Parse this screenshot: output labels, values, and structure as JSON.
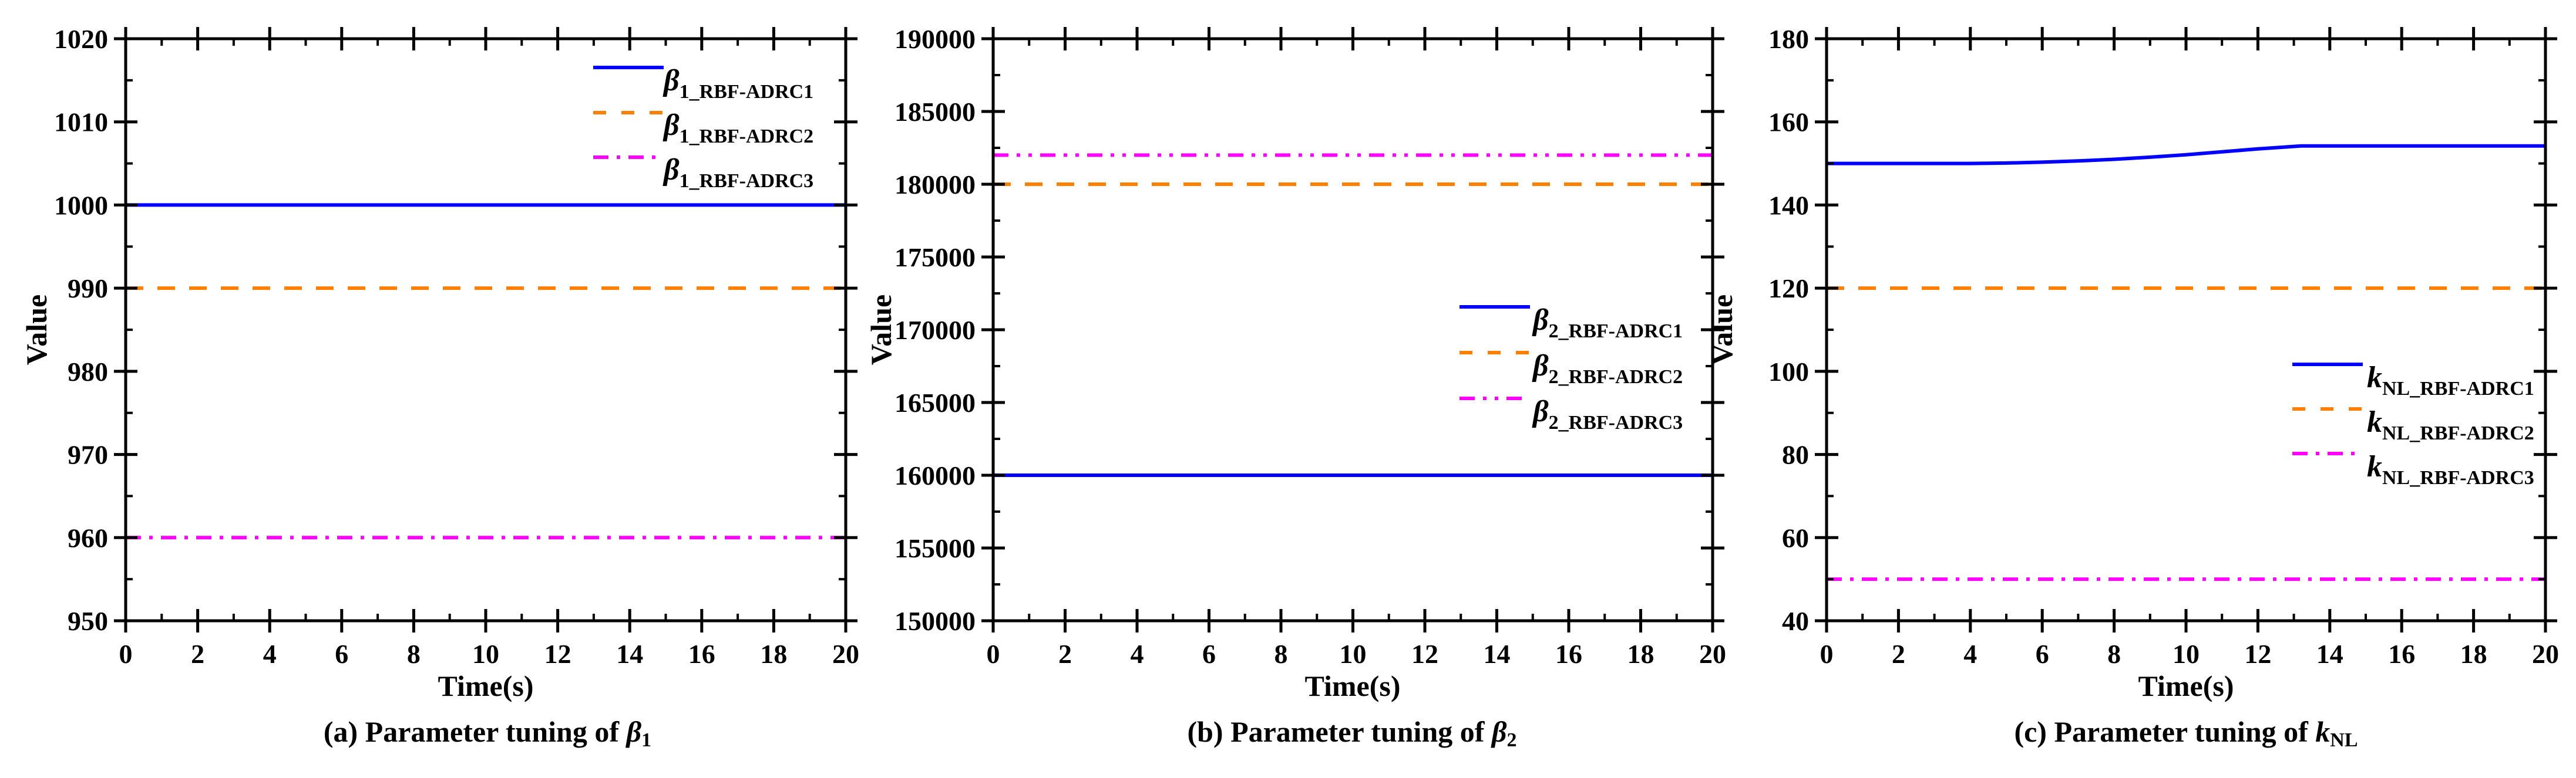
{
  "figure": {
    "panels": [
      {
        "id": "a",
        "caption_prefix": "(a) Parameter tuning of ",
        "caption_symbol": "β",
        "caption_sub": "1",
        "xlabel": "Time(s)",
        "ylabel": "Value",
        "legend": [
          {
            "symbol": "β",
            "sub": "1_RBF-ADRC1"
          },
          {
            "symbol": "β",
            "sub": "1_RBF-ADRC2"
          },
          {
            "symbol": "β",
            "sub": "1_RBF-ADRC3"
          }
        ]
      },
      {
        "id": "b",
        "caption_prefix": "(b)  Parameter tuning of ",
        "caption_symbol": "β",
        "caption_sub": "2",
        "xlabel": "Time(s)",
        "ylabel": "Value",
        "legend": [
          {
            "symbol": "β",
            "sub": "2_RBF-ADRC1"
          },
          {
            "symbol": "β",
            "sub": "2_RBF-ADRC2"
          },
          {
            "symbol": "β",
            "sub": "2_RBF-ADRC3"
          }
        ]
      },
      {
        "id": "c",
        "caption_prefix": "(c) Parameter tuning of ",
        "caption_symbol": "k",
        "caption_sub": "NL",
        "xlabel": "Time(s)",
        "ylabel": "Value",
        "legend": [
          {
            "symbol": "k",
            "sub": "NL_RBF-ADRC1"
          },
          {
            "symbol": "k",
            "sub": "NL_RBF-ADRC2"
          },
          {
            "symbol": "k",
            "sub": "NL_RBF-ADRC3"
          }
        ]
      }
    ],
    "colors": {
      "series1": "#0000ff",
      "series2": "#ff8000",
      "series3": "#ff00ff",
      "axis": "#000000"
    }
  },
  "chart_data": [
    {
      "type": "line",
      "title": "(a) Parameter tuning of β1",
      "xlabel": "Time(s)",
      "ylabel": "Value",
      "xlim": [
        0,
        20
      ],
      "ylim": [
        950,
        1020
      ],
      "xticks": [
        0,
        2,
        4,
        6,
        8,
        10,
        12,
        14,
        16,
        18,
        20
      ],
      "yticks": [
        950,
        960,
        970,
        980,
        990,
        1000,
        1010,
        1020
      ],
      "grid": false,
      "legend_position": "upper right",
      "x": [
        0,
        20
      ],
      "series": [
        {
          "name": "β1_RBF-ADRC1",
          "style": "solid",
          "color": "#0000ff",
          "values": [
            1000,
            1000
          ]
        },
        {
          "name": "β1_RBF-ADRC2",
          "style": "dash",
          "color": "#ff8000",
          "values": [
            990,
            990
          ]
        },
        {
          "name": "β1_RBF-ADRC3",
          "style": "dash-dot",
          "color": "#ff00ff",
          "values": [
            960,
            960
          ]
        }
      ]
    },
    {
      "type": "line",
      "title": "(b) Parameter tuning of β2",
      "xlabel": "Time(s)",
      "ylabel": "Value",
      "xlim": [
        0,
        20
      ],
      "ylim": [
        150000,
        190000
      ],
      "xticks": [
        0,
        2,
        4,
        6,
        8,
        10,
        12,
        14,
        16,
        18,
        20
      ],
      "yticks": [
        150000,
        155000,
        160000,
        165000,
        170000,
        175000,
        180000,
        185000,
        190000
      ],
      "grid": false,
      "legend_position": "center right",
      "x": [
        0,
        20
      ],
      "series": [
        {
          "name": "β2_RBF-ADRC1",
          "style": "solid",
          "color": "#0000ff",
          "values": [
            160000,
            160000
          ]
        },
        {
          "name": "β2_RBF-ADRC2",
          "style": "dash",
          "color": "#ff8000",
          "values": [
            180000,
            180000
          ]
        },
        {
          "name": "β2_RBF-ADRC3",
          "style": "dash-dot-dot",
          "color": "#ff00ff",
          "values": [
            182000,
            182000
          ]
        }
      ]
    },
    {
      "type": "line",
      "title": "(c) Parameter tuning of kNL",
      "xlabel": "Time(s)",
      "ylabel": "Value",
      "xlim": [
        0,
        20
      ],
      "ylim": [
        40,
        180
      ],
      "xticks": [
        0,
        2,
        4,
        6,
        8,
        10,
        12,
        14,
        16,
        18,
        20
      ],
      "yticks": [
        40,
        60,
        80,
        100,
        120,
        140,
        160,
        180
      ],
      "grid": false,
      "legend_position": "center right",
      "x": [
        0,
        2,
        4,
        5,
        6,
        7,
        8,
        9,
        10,
        11,
        12,
        13.2,
        14,
        16,
        18,
        20
      ],
      "series": [
        {
          "name": "kNL_RBF-ADRC1",
          "style": "solid",
          "color": "#0000ff",
          "values": [
            150,
            150,
            150,
            150.1,
            150.3,
            150.6,
            151.0,
            151.5,
            152.1,
            152.8,
            153.5,
            154.2,
            154.2,
            154.2,
            154.2,
            154.2
          ]
        },
        {
          "name": "kNL_RBF-ADRC2",
          "style": "dash",
          "color": "#ff8000",
          "values": [
            120,
            120,
            120,
            120,
            120,
            120,
            120,
            120,
            120,
            120,
            120,
            120,
            120,
            120,
            120,
            120
          ]
        },
        {
          "name": "kNL_RBF-ADRC3",
          "style": "dash-dot",
          "color": "#ff00ff",
          "values": [
            50,
            50,
            50,
            50,
            50,
            50,
            50,
            50,
            50,
            50,
            50,
            50,
            50,
            50,
            50,
            50
          ]
        }
      ]
    }
  ]
}
